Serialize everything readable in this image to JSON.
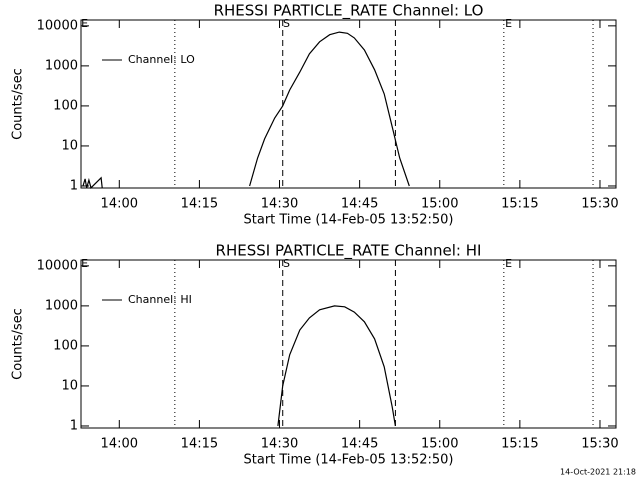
{
  "chart_data": [
    {
      "type": "line",
      "title": "RHESSI PARTICLE_RATE Channel: LO",
      "xlabel": "Start Time (14-Feb-05 13:52:50)",
      "ylabel": "Counts/sec",
      "log_y": true,
      "ylim": [
        0.89,
        14000
      ],
      "yticks": [
        1,
        10,
        100,
        1000,
        10000
      ],
      "xlim": [
        832.83,
        933
      ],
      "xticks": [
        {
          "value": 840,
          "label": "14:00"
        },
        {
          "value": 855,
          "label": "14:15"
        },
        {
          "value": 870,
          "label": "14:30"
        },
        {
          "value": 885,
          "label": "14:45"
        },
        {
          "value": 900,
          "label": "15:00"
        },
        {
          "value": 915,
          "label": "15:15"
        },
        {
          "value": 930,
          "label": "15:30"
        }
      ],
      "legend": "top-left",
      "vlines": [
        {
          "x": 850.4,
          "style": "dotted"
        },
        {
          "x": 870.6,
          "style": "dashed"
        },
        {
          "x": 891.7,
          "style": "dashed"
        },
        {
          "x": 912.0,
          "style": "dotted"
        },
        {
          "x": 928.7,
          "style": "dotted"
        }
      ],
      "flags": [
        {
          "x": 833.5,
          "label": "E"
        },
        {
          "x": 871.3,
          "label": "S"
        },
        {
          "x": 912.9,
          "label": "E"
        }
      ],
      "series": [
        {
          "name": "Channel: LO",
          "color": "#000000",
          "x": [
            833.2,
            833.6,
            833.9,
            834.3,
            834.7,
            836.6,
            836.8,
            null,
            864.4,
            865.9,
            867.2,
            869.1,
            870.6,
            871.9,
            873.8,
            875.6,
            877.5,
            879.4,
            881.2,
            882.7,
            884.0,
            885.9,
            887.8,
            889.6,
            891.1,
            892.5,
            894.3
          ],
          "values": [
            1,
            1.5,
            0.9,
            1.4,
            0.9,
            1.6,
            0.9,
            null,
            1,
            5,
            15,
            50,
            100,
            250,
            700,
            2000,
            4000,
            6000,
            7000,
            6500,
            5000,
            2500,
            800,
            200,
            30,
            5,
            1
          ]
        }
      ]
    },
    {
      "type": "line",
      "title": "RHESSI PARTICLE_RATE Channel: HI",
      "xlabel": "Start Time (14-Feb-05 13:52:50)",
      "ylabel": "Counts/sec",
      "log_y": true,
      "ylim": [
        0.89,
        14000
      ],
      "yticks": [
        1,
        10,
        100,
        1000,
        10000
      ],
      "xlim": [
        832.83,
        933
      ],
      "xticks": [
        {
          "value": 840,
          "label": "14:00"
        },
        {
          "value": 855,
          "label": "14:15"
        },
        {
          "value": 870,
          "label": "14:30"
        },
        {
          "value": 885,
          "label": "14:45"
        },
        {
          "value": 900,
          "label": "15:00"
        },
        {
          "value": 915,
          "label": "15:15"
        },
        {
          "value": 930,
          "label": "15:30"
        }
      ],
      "legend": "top-left",
      "vlines": [
        {
          "x": 850.4,
          "style": "dotted"
        },
        {
          "x": 870.6,
          "style": "dashed"
        },
        {
          "x": 891.7,
          "style": "dashed"
        },
        {
          "x": 912.0,
          "style": "dotted"
        },
        {
          "x": 928.7,
          "style": "dotted"
        }
      ],
      "flags": [
        {
          "x": 833.5,
          "label": "E"
        },
        {
          "x": 871.3,
          "label": "S"
        },
        {
          "x": 912.9,
          "label": "E"
        }
      ],
      "series": [
        {
          "name": "Channel: HI",
          "color": "#000000",
          "x": [
            869.7,
            870.6,
            871.9,
            873.8,
            875.6,
            877.5,
            880.3,
            882.2,
            884.0,
            885.9,
            887.8,
            889.6,
            891.1,
            891.7
          ],
          "values": [
            1,
            10,
            60,
            250,
            500,
            800,
            1000,
            950,
            700,
            400,
            150,
            30,
            3,
            1
          ]
        }
      ]
    }
  ],
  "footer": "14-Oct-2021 21:18"
}
